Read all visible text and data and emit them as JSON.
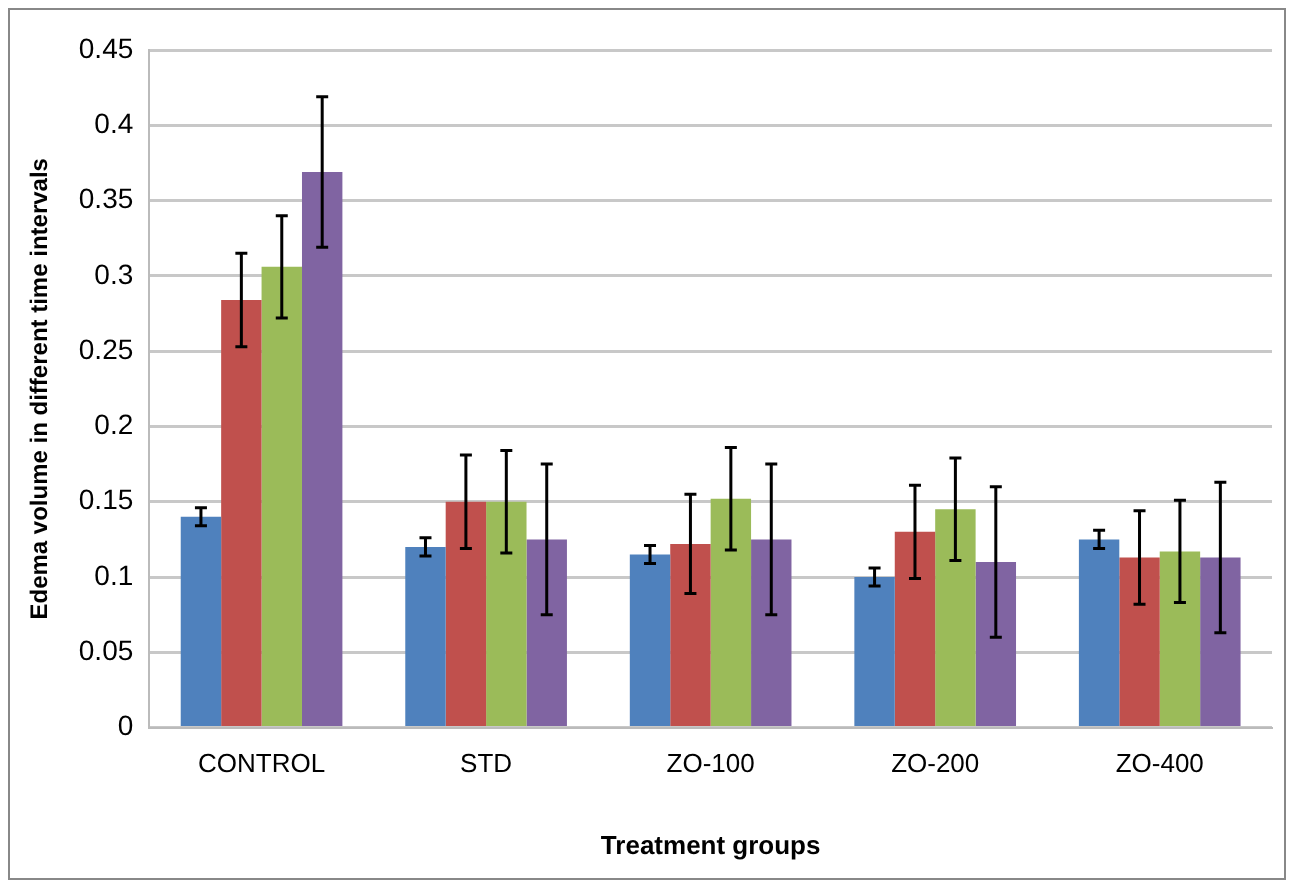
{
  "chart_data": {
    "type": "bar",
    "xlabel": "Treatment groups",
    "ylabel": "Edema volume in different time intervals",
    "categories": [
      "CONTROL",
      "STD",
      "ZO-100",
      "ZO-200",
      "ZO-400"
    ],
    "series": [
      {
        "color": "#4f81bd",
        "values": [
          0.14,
          0.12,
          0.115,
          0.1,
          0.125
        ],
        "errors": [
          0.006,
          0.006,
          0.006,
          0.006,
          0.006
        ]
      },
      {
        "color": "#c0504d",
        "values": [
          0.284,
          0.15,
          0.122,
          0.13,
          0.113
        ],
        "errors": [
          0.031,
          0.031,
          0.033,
          0.031,
          0.031
        ]
      },
      {
        "color": "#9bbb59",
        "values": [
          0.306,
          0.15,
          0.152,
          0.145,
          0.117
        ],
        "errors": [
          0.034,
          0.034,
          0.034,
          0.034,
          0.034
        ]
      },
      {
        "color": "#8064a2",
        "values": [
          0.369,
          0.125,
          0.125,
          0.11,
          0.113
        ],
        "errors": [
          0.05,
          0.05,
          0.05,
          0.05,
          0.05
        ]
      }
    ],
    "ylim": [
      0,
      0.45
    ],
    "yticks": [
      0,
      0.05,
      0.1,
      0.15,
      0.2,
      0.25,
      0.3,
      0.35,
      0.4,
      0.45
    ],
    "grid": "y",
    "legend": false
  }
}
